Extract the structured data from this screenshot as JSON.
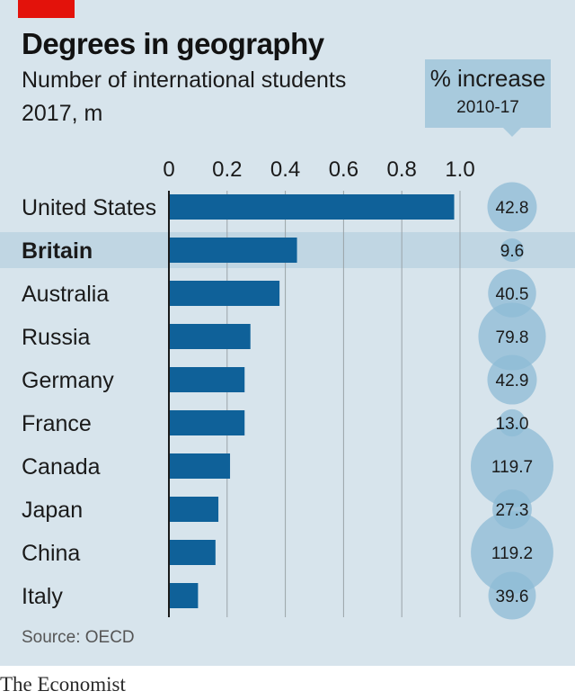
{
  "header": {
    "title": "Degrees in geography",
    "subtitle": "Number of international students",
    "unit": "2017, m",
    "increase_label": "% increase",
    "increase_period": "2010-17"
  },
  "footer": {
    "source": "Source: OECD",
    "brand": "The Economist"
  },
  "colors": {
    "bar": "#0f6199",
    "bubble": "#8dbbd6",
    "highlight": "#c0d6e3",
    "accent": "#e3120b"
  },
  "chart_data": {
    "type": "bar",
    "orientation": "horizontal",
    "categories": [
      "United States",
      "Britain",
      "Australia",
      "Russia",
      "Germany",
      "France",
      "Canada",
      "Japan",
      "China",
      "Italy"
    ],
    "values": [
      0.98,
      0.44,
      0.38,
      0.28,
      0.26,
      0.26,
      0.21,
      0.17,
      0.16,
      0.1
    ],
    "highlighted_category": "Britain",
    "x_ticks": [
      "0",
      "0.2",
      "0.4",
      "0.6",
      "0.8",
      "1.0"
    ],
    "xlim": [
      0,
      1.0
    ],
    "grid": true,
    "increase": {
      "values": [
        42.8,
        9.6,
        40.5,
        79.8,
        42.9,
        13.0,
        119.7,
        27.3,
        119.2,
        39.6
      ],
      "labels": [
        "42.8",
        "9.6",
        "40.5",
        "79.8",
        "42.9",
        "13.0",
        "119.7",
        "27.3",
        "119.2",
        "39.6"
      ]
    }
  }
}
